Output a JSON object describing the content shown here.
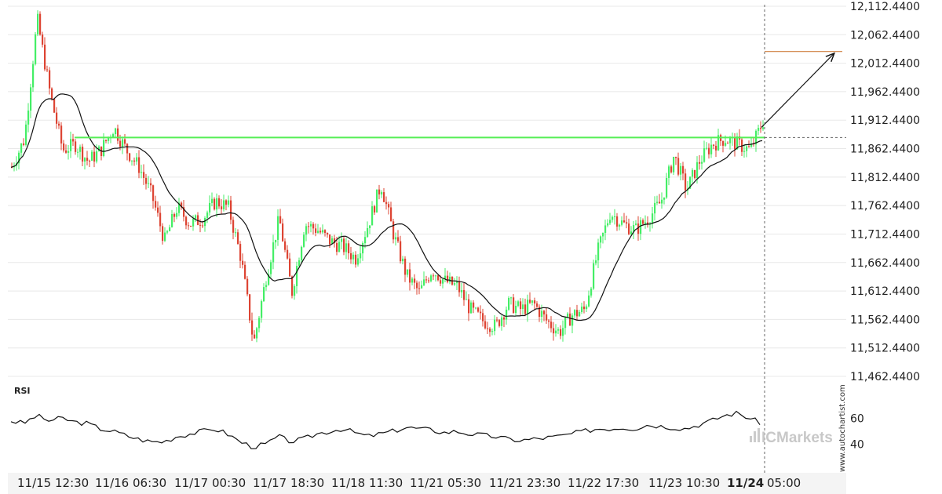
{
  "chart_data": {
    "type": "candlestick",
    "y_ticks": [
      "12,112.4400",
      "12,062.4400",
      "12,012.4400",
      "11,962.4400",
      "11,912.4400",
      "11,862.4400",
      "11,812.4400",
      "11,762.4400",
      "11,712.4400",
      "11,662.4400",
      "11,612.4400",
      "11,562.4400",
      "11,512.4400",
      "11,462.4400"
    ],
    "ylim": [
      11462.44,
      12112.44
    ],
    "x_ticks": [
      {
        "label": "11/15 12:30",
        "bold": false
      },
      {
        "label": "11/16 06:30",
        "bold": false
      },
      {
        "label": "11/17 00:30",
        "bold": false
      },
      {
        "label": "11/17 18:30",
        "bold": false
      },
      {
        "label": "11/18 11:30",
        "bold": false
      },
      {
        "label": "11/21 05:30",
        "bold": false
      },
      {
        "label": "11/21 23:30",
        "bold": false
      },
      {
        "label": "11/22 17:30",
        "bold": false
      },
      {
        "label": "11/23 10:30",
        "bold": false
      },
      {
        "label": "11/24",
        "bold": true
      },
      {
        "label": "05:00",
        "bold": false
      }
    ],
    "price_path": [
      11830,
      11880,
      12090,
      11960,
      11860,
      11870,
      11840,
      11860,
      11900,
      11860,
      11830,
      11780,
      11700,
      11760,
      11730,
      11740,
      11770,
      11760,
      11670,
      11520,
      11640,
      11740,
      11610,
      11730,
      11720,
      11700,
      11690,
      11670,
      11730,
      11800,
      11710,
      11640,
      11610,
      11650,
      11630,
      11620,
      11580,
      11560,
      11550,
      11590,
      11580,
      11590,
      11560,
      11540,
      11570,
      11580,
      11680,
      11750,
      11730,
      11720,
      11740,
      11770,
      11850,
      11790,
      11840,
      11870,
      11880,
      11870,
      11860,
      11910
    ],
    "support_level": 11882,
    "target_level": 12033,
    "rsi_label": "RSI",
    "rsi_ticks": [
      "60",
      "40"
    ],
    "rsi_ylim": [
      20,
      80
    ],
    "rsi_path": [
      58,
      56,
      62,
      58,
      60,
      57,
      56,
      52,
      50,
      47,
      44,
      42,
      42,
      46,
      48,
      50,
      52,
      48,
      42,
      38,
      40,
      46,
      42,
      44,
      48,
      50,
      52,
      49,
      46,
      48,
      50,
      53,
      52,
      51,
      49,
      50,
      48,
      47,
      46,
      44,
      43,
      44,
      45,
      46,
      48,
      50,
      52,
      52,
      53,
      52,
      55,
      54,
      53,
      52,
      55,
      58,
      62,
      64,
      60,
      56
    ]
  },
  "watermark": "www.autochartist.com",
  "brand": "ICMarkets"
}
